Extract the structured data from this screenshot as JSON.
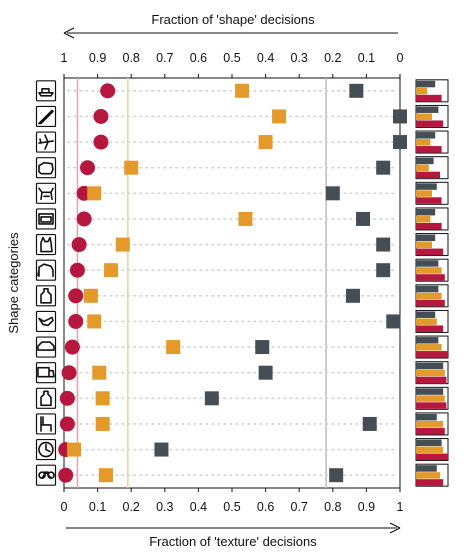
{
  "chart_data": {
    "type": "scatter",
    "top_axis": {
      "label": "Fraction of 'shape' decisions",
      "range": [
        1,
        0
      ],
      "ticks": [
        "1",
        "0.9",
        "0.8",
        "0.7",
        "0.6",
        "0.5",
        "0.4",
        "0.3",
        "0.2",
        "0.1",
        "0"
      ]
    },
    "bottom_axis": {
      "label": "Fraction of 'texture' decisions",
      "range": [
        0,
        1
      ],
      "ticks": [
        "0",
        "0.1",
        "0.2",
        "0.3",
        "0.4",
        "0.5",
        "0.6",
        "0.7",
        "0.8",
        "0.9",
        "1"
      ]
    },
    "ylabel": "Shape categories",
    "categories": [
      "boat",
      "knife",
      "airplane",
      "bear",
      "dog",
      "oven",
      "cat",
      "elephant",
      "bottle",
      "bird",
      "car",
      "truck",
      "bottle",
      "chair",
      "clock",
      "bicycle"
    ],
    "category_icons": [
      "boat-icon",
      "knife-icon",
      "airplane-icon",
      "bear-icon",
      "dog-icon",
      "oven-icon",
      "cat-icon",
      "elephant-icon",
      "bottle-icon",
      "bird-icon",
      "car-icon",
      "truck-icon",
      "bottle-icon",
      "chair-icon",
      "clock-icon",
      "bicycle-icon"
    ],
    "series": [
      {
        "marker": "circle",
        "color": "#b5173f",
        "values": [
          0.13,
          0.11,
          0.11,
          0.07,
          0.06,
          0.06,
          0.045,
          0.04,
          0.035,
          0.035,
          0.025,
          0.015,
          0.01,
          0.01,
          0.005,
          0.005
        ]
      },
      {
        "marker": "square",
        "color": "#e39a2a",
        "values": [
          0.53,
          0.64,
          0.6,
          0.2,
          0.09,
          0.54,
          0.175,
          0.14,
          0.08,
          0.09,
          0.325,
          0.105,
          0.115,
          0.115,
          0.03,
          0.125
        ]
      },
      {
        "marker": "square",
        "color": "#454e55",
        "values": [
          0.87,
          1.0,
          1.0,
          0.95,
          0.8,
          0.89,
          0.95,
          0.95,
          0.86,
          0.98,
          0.59,
          0.6,
          0.44,
          0.91,
          0.29,
          0.81
        ]
      }
    ],
    "reference_lines": [
      {
        "color": "#e6a3a8",
        "x": 0.04
      },
      {
        "color": "#f0cf9a",
        "x": 0.19
      },
      {
        "color": "#bdbdbd",
        "x": 0.78
      }
    ],
    "row_bars": {
      "colors": [
        "#454e55",
        "#e39a2a",
        "#b5173f"
      ],
      "values": [
        [
          0.6,
          0.35,
          0.8
        ],
        [
          0.7,
          0.5,
          0.85
        ],
        [
          0.6,
          0.45,
          0.8
        ],
        [
          0.55,
          0.4,
          0.75
        ],
        [
          0.65,
          0.5,
          0.8
        ],
        [
          0.6,
          0.45,
          0.8
        ],
        [
          0.6,
          0.5,
          0.85
        ],
        [
          0.7,
          0.8,
          0.9
        ],
        [
          0.7,
          0.8,
          0.9
        ],
        [
          0.6,
          0.65,
          0.85
        ],
        [
          0.7,
          0.8,
          1.0
        ],
        [
          0.85,
          0.9,
          0.95
        ],
        [
          0.85,
          0.9,
          0.95
        ],
        [
          0.65,
          0.85,
          0.9
        ],
        [
          0.8,
          0.85,
          1.0
        ],
        [
          0.65,
          0.75,
          0.85
        ]
      ]
    },
    "grid": false
  }
}
